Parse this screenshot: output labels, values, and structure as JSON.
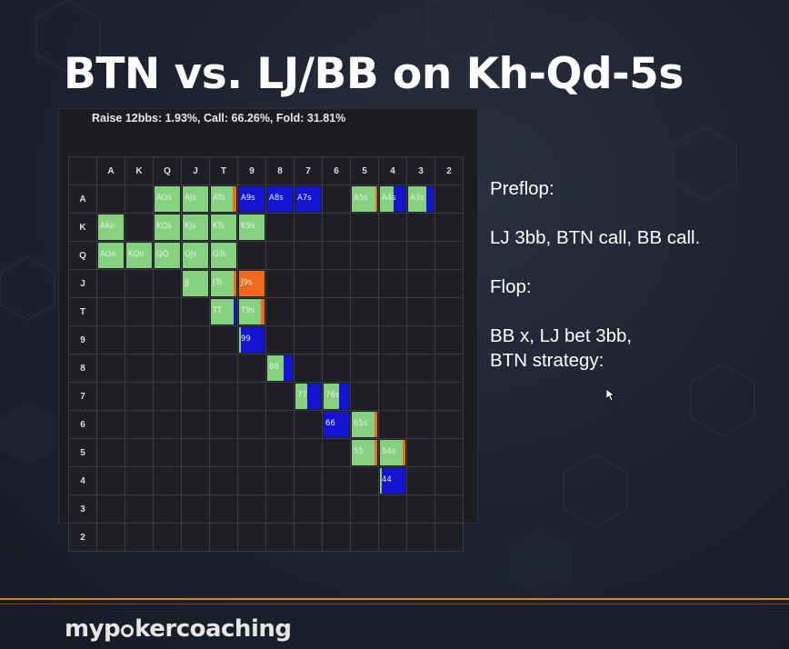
{
  "slide": {
    "title": "BTN vs. LJ/BB on Kh-Qd-5s",
    "summary": "Raise 12bbs: 1.93%, Call: 66.26%, Fold: 31.81%",
    "side_lines": [
      "Preflop:",
      "",
      "LJ 3bb, BTN call, BB call.",
      "",
      "Flop:",
      "",
      "BB x, LJ bet 3bb,",
      "BTN strategy:"
    ],
    "logo": {
      "before": "myp",
      "after": "kercoaching",
      "icon": "poker-chip-icon"
    }
  },
  "colors": {
    "call": "#86d17f",
    "fold": "#1414d2",
    "raise": "#ef6a1a",
    "accent": "#d9861f"
  },
  "matrix": {
    "ranks": [
      "A",
      "K",
      "Q",
      "J",
      "T",
      "9",
      "8",
      "7",
      "6",
      "5",
      "4",
      "3",
      "2"
    ],
    "hands": [
      {
        "label": "AQs",
        "row": "A",
        "col": "Q",
        "call": 1,
        "fold": 0,
        "raise": 0
      },
      {
        "label": "AJs",
        "row": "A",
        "col": "J",
        "call": 1,
        "fold": 0,
        "raise": 0
      },
      {
        "label": "ATs",
        "row": "A",
        "col": "T",
        "call": 0.85,
        "fold": 0,
        "raise": 0.15
      },
      {
        "label": "A9s",
        "row": "A",
        "col": "9",
        "call": 0,
        "fold": 1,
        "raise": 0
      },
      {
        "label": "A8s",
        "row": "A",
        "col": "8",
        "call": 0,
        "fold": 1,
        "raise": 0
      },
      {
        "label": "A7s",
        "row": "A",
        "col": "7",
        "call": 0,
        "fold": 1,
        "raise": 0
      },
      {
        "label": "A5s",
        "row": "A",
        "col": "5",
        "call": 0.92,
        "fold": 0,
        "raise": 0.08
      },
      {
        "label": "A4s",
        "row": "A",
        "col": "4",
        "call": 0.55,
        "fold": 0.45,
        "raise": 0
      },
      {
        "label": "A3s",
        "row": "A",
        "col": "3",
        "call": 0.7,
        "fold": 0.3,
        "raise": 0
      },
      {
        "label": "AKo",
        "row": "K",
        "col": "A",
        "call": 1,
        "fold": 0,
        "raise": 0
      },
      {
        "label": "KQs",
        "row": "K",
        "col": "Q",
        "call": 1,
        "fold": 0,
        "raise": 0
      },
      {
        "label": "KJs",
        "row": "K",
        "col": "J",
        "call": 1,
        "fold": 0,
        "raise": 0
      },
      {
        "label": "KTs",
        "row": "K",
        "col": "T",
        "call": 1,
        "fold": 0,
        "raise": 0
      },
      {
        "label": "K9s",
        "row": "K",
        "col": "9",
        "call": 1,
        "fold": 0,
        "raise": 0
      },
      {
        "label": "AQo",
        "row": "Q",
        "col": "A",
        "call": 1,
        "fold": 0,
        "raise": 0
      },
      {
        "label": "KQo",
        "row": "Q",
        "col": "K",
        "call": 1,
        "fold": 0,
        "raise": 0
      },
      {
        "label": "QQ",
        "row": "Q",
        "col": "Q",
        "call": 1,
        "fold": 0,
        "raise": 0
      },
      {
        "label": "QJs",
        "row": "Q",
        "col": "J",
        "call": 1,
        "fold": 0,
        "raise": 0
      },
      {
        "label": "QTs",
        "row": "Q",
        "col": "T",
        "call": 1,
        "fold": 0,
        "raise": 0
      },
      {
        "label": "JJ",
        "row": "J",
        "col": "J",
        "call": 1,
        "fold": 0,
        "raise": 0
      },
      {
        "label": "JTs",
        "row": "J",
        "col": "T",
        "call": 0.88,
        "fold": 0,
        "raise": 0.12
      },
      {
        "label": "J9s",
        "row": "J",
        "col": "9",
        "call": 0,
        "fold": 0,
        "raise": 1
      },
      {
        "label": "TT",
        "row": "T",
        "col": "T",
        "call": 0.9,
        "fold": 0.1,
        "raise": 0
      },
      {
        "label": "T9s",
        "row": "T",
        "col": "9",
        "call": 0.85,
        "fold": 0,
        "raise": 0.15
      },
      {
        "label": "99",
        "row": "9",
        "col": "9",
        "call": 0.08,
        "fold": 0.92,
        "raise": 0
      },
      {
        "label": "88",
        "row": "8",
        "col": "8",
        "call": 0.65,
        "fold": 0.35,
        "raise": 0
      },
      {
        "label": "77",
        "row": "7",
        "col": "7",
        "call": 0.45,
        "fold": 0.55,
        "raise": 0
      },
      {
        "label": "76s",
        "row": "7",
        "col": "6",
        "call": 0.6,
        "fold": 0.4,
        "raise": 0
      },
      {
        "label": "66",
        "row": "6",
        "col": "6",
        "call": 0,
        "fold": 1,
        "raise": 0
      },
      {
        "label": "65s",
        "row": "6",
        "col": "5",
        "call": 0.9,
        "fold": 0,
        "raise": 0.1
      },
      {
        "label": "55",
        "row": "5",
        "col": "5",
        "call": 0.88,
        "fold": 0,
        "raise": 0.12
      },
      {
        "label": "54s",
        "row": "5",
        "col": "4",
        "call": 0.88,
        "fold": 0,
        "raise": 0.12
      },
      {
        "label": "44",
        "row": "4",
        "col": "4",
        "call": 0.06,
        "fold": 0.94,
        "raise": 0
      }
    ]
  }
}
